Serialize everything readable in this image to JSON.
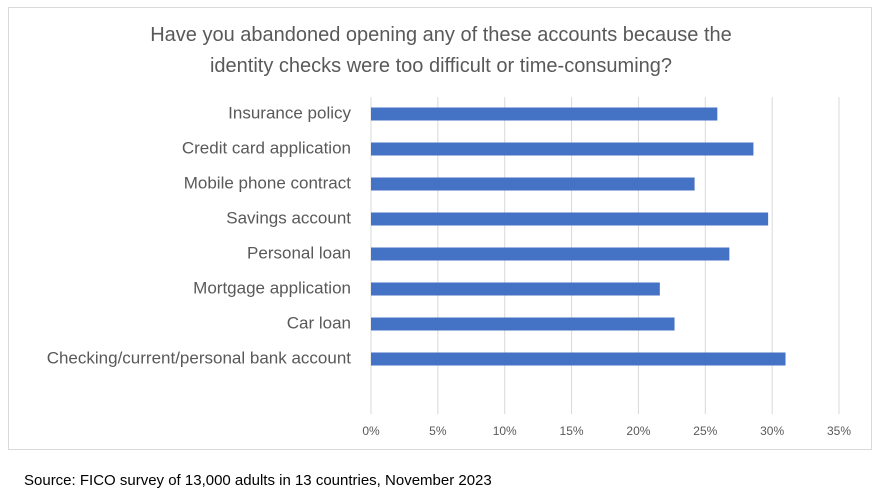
{
  "chart_data": {
    "type": "bar",
    "orientation": "horizontal",
    "title": "Have you abandoned opening any of these accounts because the identity checks were too difficult or time-consuming?",
    "categories": [
      "Insurance policy",
      "Credit card application",
      "Mobile phone contract",
      "Savings account",
      "Personal loan",
      "Mortgage application",
      "Car loan",
      "Checking/current/personal bank account"
    ],
    "values": [
      25.9,
      28.6,
      24.2,
      29.7,
      26.8,
      21.6,
      22.7,
      31.0
    ],
    "color": "#4472c4",
    "xlim": [
      0,
      35
    ],
    "xticks": [
      {
        "value": 0,
        "label": "0%"
      },
      {
        "value": 5,
        "label": "5%"
      },
      {
        "value": 10,
        "label": "10%"
      },
      {
        "value": 15,
        "label": "15%"
      },
      {
        "value": 20,
        "label": "20%"
      },
      {
        "value": 25,
        "label": "25%"
      },
      {
        "value": 30,
        "label": "30%"
      },
      {
        "value": 35,
        "label": "35%"
      }
    ],
    "grid": true,
    "source": "Source: FICO survey of 13,000 adults in 13 countries, November 2023"
  }
}
